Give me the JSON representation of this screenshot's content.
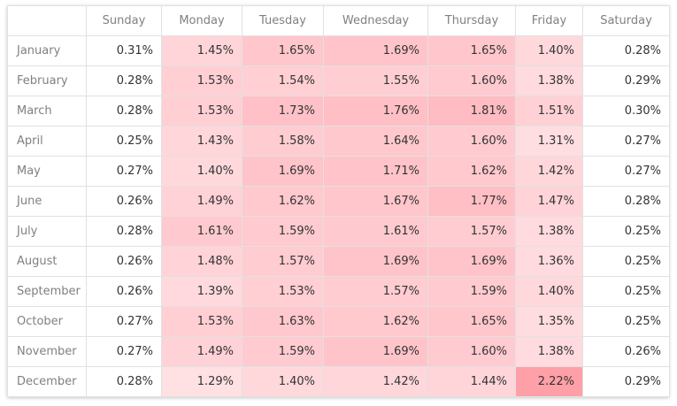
{
  "chart_data": {
    "type": "heatmap",
    "columns": [
      "Sunday",
      "Monday",
      "Tuesday",
      "Wednesday",
      "Thursday",
      "Friday",
      "Saturday"
    ],
    "rows": [
      "January",
      "February",
      "March",
      "April",
      "May",
      "June",
      "July",
      "August",
      "September",
      "October",
      "November",
      "December"
    ],
    "values": [
      [
        0.31,
        1.45,
        1.65,
        1.69,
        1.65,
        1.4,
        0.28
      ],
      [
        0.28,
        1.53,
        1.54,
        1.55,
        1.6,
        1.38,
        0.29
      ],
      [
        0.28,
        1.53,
        1.73,
        1.76,
        1.81,
        1.51,
        0.3
      ],
      [
        0.25,
        1.43,
        1.58,
        1.64,
        1.6,
        1.31,
        0.27
      ],
      [
        0.27,
        1.4,
        1.69,
        1.71,
        1.62,
        1.42,
        0.27
      ],
      [
        0.26,
        1.49,
        1.62,
        1.67,
        1.77,
        1.47,
        0.28
      ],
      [
        0.28,
        1.61,
        1.59,
        1.61,
        1.57,
        1.38,
        0.25
      ],
      [
        0.26,
        1.48,
        1.57,
        1.69,
        1.69,
        1.36,
        0.25
      ],
      [
        0.26,
        1.39,
        1.53,
        1.57,
        1.59,
        1.4,
        0.25
      ],
      [
        0.27,
        1.53,
        1.63,
        1.62,
        1.65,
        1.35,
        0.25
      ],
      [
        0.27,
        1.49,
        1.59,
        1.69,
        1.6,
        1.38,
        0.26
      ],
      [
        0.28,
        1.29,
        1.4,
        1.42,
        1.44,
        2.22,
        0.29
      ]
    ],
    "value_format": "percent",
    "color_scale": {
      "low_color": "#ffffff",
      "high_color": "#ff9aa3",
      "threshold": 1.0,
      "range": [
        1.2,
        2.3
      ]
    }
  }
}
